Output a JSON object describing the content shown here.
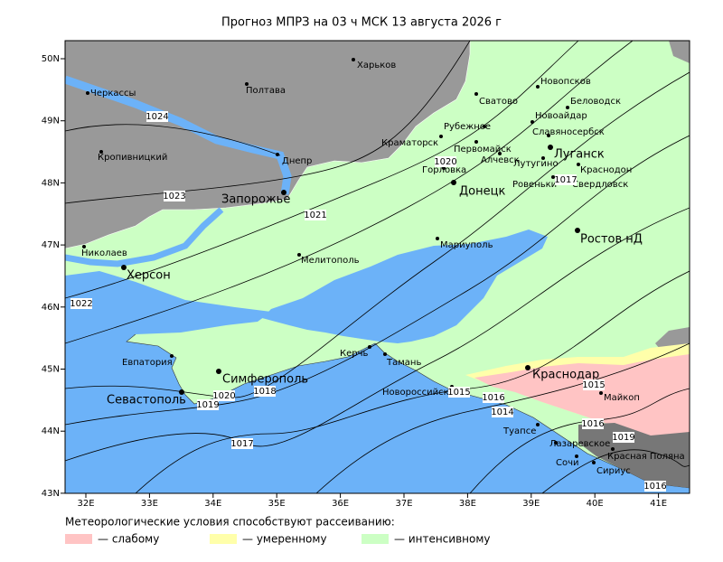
{
  "title": "Прогноз МПРЗ на 03 ч МСК 13 августа 2026 г",
  "lon_ticks": [
    {
      "value": 32,
      "label": "32E"
    },
    {
      "value": 33,
      "label": "33E"
    },
    {
      "value": 34,
      "label": "34E"
    },
    {
      "value": 35,
      "label": "35E"
    },
    {
      "value": 36,
      "label": "36E"
    },
    {
      "value": 37,
      "label": "37E"
    },
    {
      "value": 38,
      "label": "38E"
    },
    {
      "value": 39,
      "label": "39E"
    },
    {
      "value": 40,
      "label": "40E"
    },
    {
      "value": 41,
      "label": "41E"
    }
  ],
  "lat_ticks": [
    {
      "value": 50,
      "label": "50N"
    },
    {
      "value": 49,
      "label": "49N"
    },
    {
      "value": 48,
      "label": "48N"
    },
    {
      "value": 47,
      "label": "47N"
    },
    {
      "value": 46,
      "label": "46N"
    },
    {
      "value": 45,
      "label": "45N"
    },
    {
      "value": 44,
      "label": "44N"
    },
    {
      "value": 43,
      "label": "43N"
    }
  ],
  "cities": [
    "Харьков",
    "Полтава",
    "Черкассы",
    "Кропивницкий",
    "Днепр",
    "Запорожье",
    "Николаев",
    "Херсон",
    "Мелитополь",
    "Евпатория",
    "Симферополь",
    "Севастополь",
    "Керчь",
    "Тамань",
    "Новороссийск",
    "Краснодар",
    "Туапсе",
    "Сочи",
    "Майкоп",
    "Лазаревское",
    "Красная Поляна",
    "Сириус",
    "Мариуполь",
    "Ростов нД",
    "Донецк",
    "Горловка",
    "Краматорск",
    "Рубежное",
    "Сватово",
    "Новопсков",
    "Беловодск",
    "Новоайдар",
    "Славяносербск",
    "Луганск",
    "Первомайск",
    "Алчевск",
    "Лутугино",
    "Краснодон",
    "Ровеньки",
    "Свердловск"
  ],
  "isobar_labels": [
    1024,
    1023,
    1022,
    1021,
    1020,
    1020,
    1019,
    1018,
    1017,
    1017,
    1015,
    1016,
    1014,
    1015,
    1016,
    1019,
    1016
  ],
  "legend": {
    "title": "Метеорологические условия способствуют рассеиванию:",
    "items": [
      {
        "label": "— слабому",
        "color": "#ffc4c4"
      },
      {
        "label": "— умеренному",
        "color": "#ffffaa"
      },
      {
        "label": "— интенсивному",
        "color": "#ccffc4"
      }
    ]
  }
}
